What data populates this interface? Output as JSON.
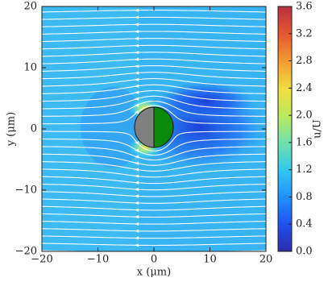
{
  "chart_data": {
    "type": "heatmap",
    "xlabel": "x (μm)",
    "ylabel": "y (μm)",
    "colorbar_label": "u/U",
    "xlim": [
      -20,
      20
    ],
    "ylim": [
      -20,
      20
    ],
    "xticks": [
      {
        "value": -20,
        "label": "−20"
      },
      {
        "value": -10,
        "label": "−10"
      },
      0,
      10,
      20
    ],
    "yticks": [
      {
        "value": -20,
        "label": "−20"
      },
      {
        "value": -10,
        "label": "−10"
      },
      0,
      10,
      20
    ],
    "clim": [
      0,
      3.6
    ],
    "cticks": [
      {
        "value": 0,
        "label": "0.0"
      },
      0.4,
      0.8,
      1.2,
      1.6,
      {
        "value": 2,
        "label": "2.0"
      },
      2.4,
      2.8,
      3.2,
      3.6
    ]
  }
}
